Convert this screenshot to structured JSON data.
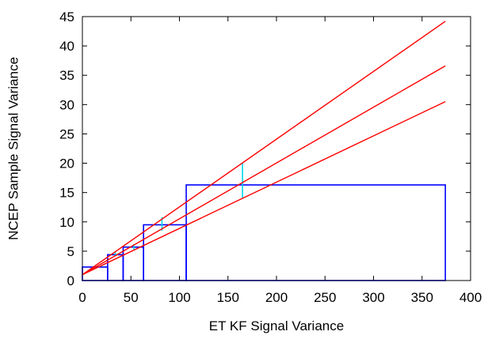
{
  "chart_data": {
    "type": "line",
    "title": "",
    "xlabel": "ET KF Signal Variance",
    "ylabel": "NCEP Sample Signal Variance",
    "xlim": [
      0,
      400
    ],
    "ylim": [
      0,
      45
    ],
    "xticks": [
      "0",
      "50",
      "100",
      "150",
      "200",
      "250",
      "300",
      "350",
      "400"
    ],
    "yticks": [
      "0",
      "5",
      "10",
      "15",
      "20",
      "25",
      "30",
      "35",
      "40",
      "45"
    ],
    "grid": false,
    "legend": "none",
    "series": [
      {
        "color": "#ff0000",
        "x": [
          0,
          374
        ],
        "y": [
          1.0,
          44.2
        ]
      },
      {
        "color": "#ff0000",
        "x": [
          0,
          374
        ],
        "y": [
          1.0,
          36.6
        ]
      },
      {
        "color": "#ff0000",
        "x": [
          0,
          374
        ],
        "y": [
          1.0,
          30.5
        ]
      }
    ],
    "bins": [
      {
        "x0": 0,
        "x1": 26,
        "y": 2.3
      },
      {
        "x0": 26,
        "x1": 42,
        "y": 4.4
      },
      {
        "x0": 42,
        "x1": 63,
        "y": 5.7
      },
      {
        "x0": 63,
        "x1": 107,
        "y": 9.5
      },
      {
        "x0": 107,
        "x1": 374,
        "y": 16.3
      }
    ],
    "error_bars": [
      {
        "x": 34,
        "y0": 4.2,
        "y1": 4.8
      },
      {
        "x": 53,
        "y0": 5.3,
        "y1": 6.2
      },
      {
        "x": 82,
        "y0": 8.5,
        "y1": 10.8
      },
      {
        "x": 165,
        "y0": 14.0,
        "y1": 20.0
      }
    ],
    "colors": {
      "bins": "#0000ff",
      "lines": "#ff0000",
      "error_bars": "#00d8e8"
    }
  }
}
